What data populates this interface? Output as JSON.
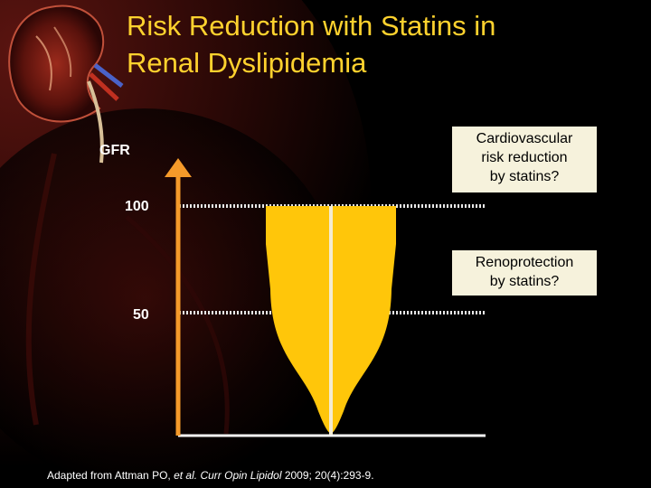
{
  "title": {
    "line1": "Risk Reduction with Statins in",
    "line2": "Renal Dyslipidemia"
  },
  "axis": {
    "label": "GFR",
    "tick_100": "100",
    "tick_50": "50"
  },
  "callouts": {
    "cardiovascular": {
      "line1": "Cardiovascular",
      "line2": "risk reduction",
      "line3": "by statins?"
    },
    "renoprotection": {
      "line1": "Renoprotection",
      "line2": "by statins?"
    }
  },
  "citation": {
    "prefix": "Adapted from Attman PO, ",
    "etal": "et al. ",
    "journal": "Curr Opin Lipidol",
    "details": " 2009; 20(4):293-9."
  },
  "colors": {
    "title": "#ffd22e",
    "shape_fill": "#ffc60a",
    "arrow": "#f59a2a",
    "callout_bg": "#f6f2dc"
  }
}
